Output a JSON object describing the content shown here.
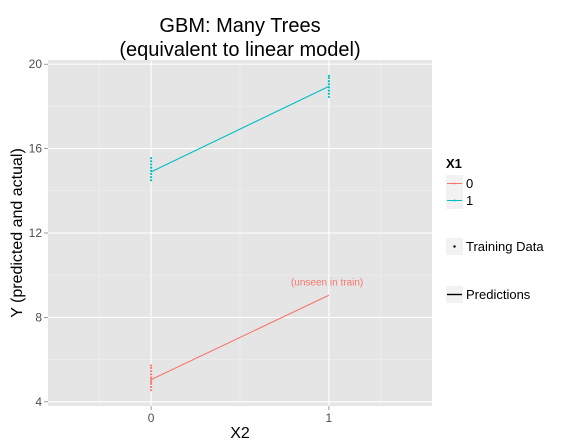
{
  "chart_data": {
    "type": "line",
    "title_lines": [
      "GBM: Many Trees",
      "(equivalent to linear model)"
    ],
    "xlabel": "X2",
    "ylabel": "Y (predicted and actual)",
    "x_ticks": [
      0,
      1
    ],
    "y_ticks": [
      4,
      8,
      12,
      16,
      20
    ],
    "xlim": [
      -0.58,
      1.58
    ],
    "ylim": [
      3.8,
      20.2
    ],
    "grid": true,
    "legend_placement": "right",
    "legend_title": "X1",
    "series": [
      {
        "name": "0",
        "color": "#F8766D",
        "predictions": [
          {
            "x": 0,
            "y": 5.05
          },
          {
            "x": 1,
            "y": 9.05
          }
        ],
        "training_points": [
          {
            "x": 0,
            "y": 4.55
          },
          {
            "x": 0,
            "y": 4.7
          },
          {
            "x": 0,
            "y": 4.85
          },
          {
            "x": 0,
            "y": 4.95
          },
          {
            "x": 0,
            "y": 5.05
          },
          {
            "x": 0,
            "y": 5.15
          },
          {
            "x": 0,
            "y": 5.3
          },
          {
            "x": 0,
            "y": 5.45
          },
          {
            "x": 0,
            "y": 5.6
          },
          {
            "x": 0,
            "y": 5.72
          }
        ]
      },
      {
        "name": "1",
        "color": "#00BFC4",
        "predictions": [
          {
            "x": 0,
            "y": 14.9
          },
          {
            "x": 1,
            "y": 18.95
          }
        ],
        "training_points": [
          {
            "x": 0,
            "y": 14.5
          },
          {
            "x": 0,
            "y": 14.65
          },
          {
            "x": 0,
            "y": 14.8
          },
          {
            "x": 0,
            "y": 14.95
          },
          {
            "x": 0,
            "y": 15.1
          },
          {
            "x": 0,
            "y": 15.25
          },
          {
            "x": 0,
            "y": 15.4
          },
          {
            "x": 0,
            "y": 15.55
          },
          {
            "x": 1,
            "y": 18.45
          },
          {
            "x": 1,
            "y": 18.6
          },
          {
            "x": 1,
            "y": 18.75
          },
          {
            "x": 1,
            "y": 18.9
          },
          {
            "x": 1,
            "y": 19.05
          },
          {
            "x": 1,
            "y": 19.2
          },
          {
            "x": 1,
            "y": 19.35
          },
          {
            "x": 1,
            "y": 19.45
          }
        ]
      }
    ],
    "legend_shapes": [
      {
        "label": "Training Data",
        "kind": "point"
      },
      {
        "label": "Predictions",
        "kind": "line"
      }
    ],
    "annotations": [
      {
        "text": "(unseen in train)",
        "x": 0.99,
        "y": 9.5,
        "color": "#F8766D"
      }
    ]
  }
}
